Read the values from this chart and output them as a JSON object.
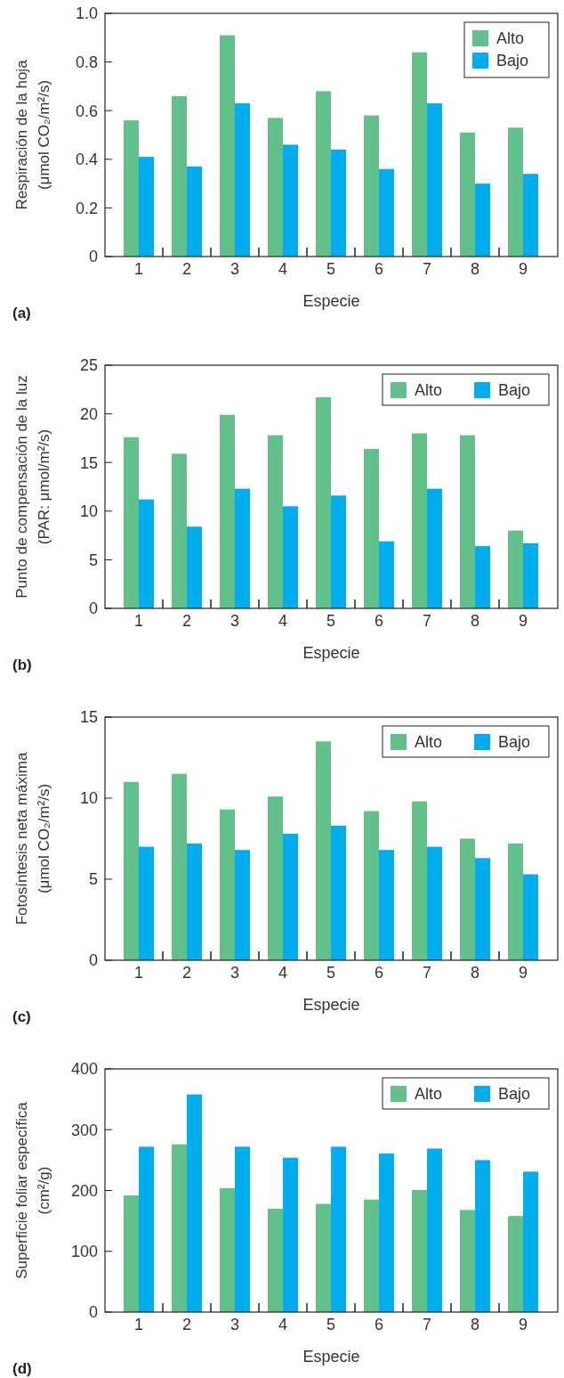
{
  "chart_data": [
    {
      "type": "bar",
      "title": "(a)",
      "xlabel": "Especie",
      "ylabel": "Respiración de la hoja\n(μmol CO₂/m²/s)",
      "categories": [
        "1",
        "2",
        "3",
        "4",
        "5",
        "6",
        "7",
        "8",
        "9"
      ],
      "series": [
        {
          "name": "Alto",
          "color": "#62c08a",
          "values": [
            0.56,
            0.66,
            0.91,
            0.57,
            0.68,
            0.58,
            0.84,
            0.51,
            0.53
          ]
        },
        {
          "name": "Bajo",
          "color": "#00aeef",
          "values": [
            0.41,
            0.37,
            0.63,
            0.46,
            0.44,
            0.36,
            0.63,
            0.3,
            0.34
          ]
        }
      ],
      "ylim": [
        0,
        1
      ],
      "yticks": [
        0,
        {
          "value": 0.2,
          "label": "0.2"
        },
        {
          "value": 0.4,
          "label": "0.4"
        },
        {
          "value": 0.6,
          "label": "0.6"
        },
        {
          "value": 0.8,
          "label": "0.8"
        },
        {
          "value": 1,
          "label": "1.0"
        }
      ],
      "legend": "top right"
    },
    {
      "type": "bar",
      "title": "(b)",
      "xlabel": "Especie",
      "ylabel": "Punto de compensación de la luz\n(PAR: μmol/m²/s)",
      "categories": [
        "1",
        "2",
        "3",
        "4",
        "5",
        "6",
        "7",
        "8",
        "9"
      ],
      "series": [
        {
          "name": "Alto",
          "color": "#62c08a",
          "values": [
            17.6,
            15.9,
            19.9,
            17.8,
            21.7,
            16.4,
            18.0,
            17.8,
            8.0
          ]
        },
        {
          "name": "Bajo",
          "color": "#00aeef",
          "values": [
            11.2,
            8.4,
            12.3,
            10.5,
            11.6,
            6.9,
            12.3,
            6.4,
            6.7
          ]
        }
      ],
      "ylim": [
        0,
        25
      ],
      "yticks": [
        0,
        5,
        10,
        15,
        20,
        25
      ],
      "legend": "top right"
    },
    {
      "type": "bar",
      "title": "(c)",
      "xlabel": "Especie",
      "ylabel": "Fotosíntesis neta máxima\n(μmol CO₂/m²/s)",
      "categories": [
        "1",
        "2",
        "3",
        "4",
        "5",
        "6",
        "7",
        "8",
        "9"
      ],
      "series": [
        {
          "name": "Alto",
          "color": "#62c08a",
          "values": [
            11.0,
            11.5,
            9.3,
            10.1,
            13.5,
            9.2,
            9.8,
            7.5,
            7.2
          ]
        },
        {
          "name": "Bajo",
          "color": "#00aeef",
          "values": [
            7.0,
            7.2,
            6.8,
            7.8,
            8.3,
            6.8,
            7.0,
            6.3,
            5.3
          ]
        }
      ],
      "ylim": [
        0,
        15
      ],
      "yticks": [
        0,
        5,
        10,
        15
      ],
      "legend": "top right"
    },
    {
      "type": "bar",
      "title": "(d)",
      "xlabel": "Especie",
      "ylabel": "Superficie foliar específica\n(cm²/g)",
      "categories": [
        "1",
        "2",
        "3",
        "4",
        "5",
        "6",
        "7",
        "8",
        "9"
      ],
      "series": [
        {
          "name": "Alto",
          "color": "#62c08a",
          "values": [
            192,
            276,
            204,
            170,
            178,
            185,
            201,
            168,
            158
          ]
        },
        {
          "name": "Bajo",
          "color": "#00aeef",
          "values": [
            272,
            358,
            272,
            254,
            272,
            261,
            269,
            250,
            231
          ]
        }
      ],
      "ylim": [
        0,
        400
      ],
      "yticks": [
        0,
        100,
        200,
        300,
        400
      ],
      "legend": "top right"
    }
  ]
}
